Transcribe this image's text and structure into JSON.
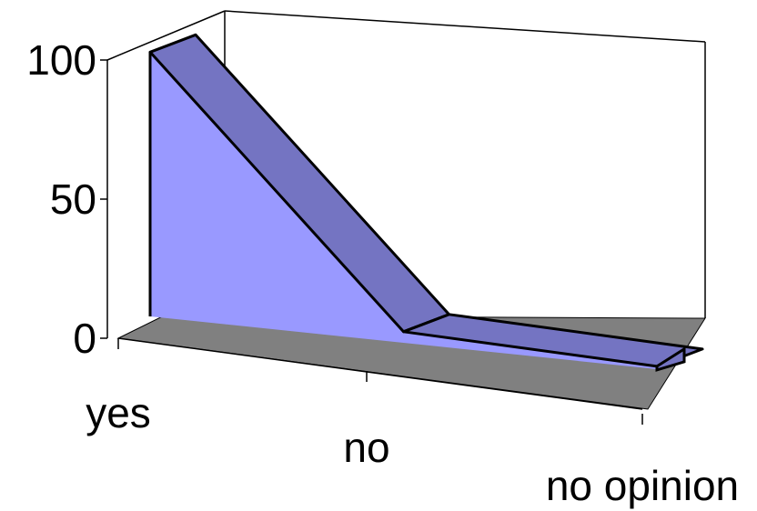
{
  "chart_data": {
    "type": "area",
    "variant": "3d",
    "title": "",
    "xlabel": "",
    "ylabel": "",
    "categories": [
      "yes",
      "no",
      "no opinion"
    ],
    "series": [
      {
        "values": [
          95,
          4,
          1
        ]
      }
    ],
    "ylim": [
      0,
      100
    ],
    "yticks": [
      0,
      50,
      100
    ],
    "grid": false,
    "legend": "none",
    "colors": {
      "area_front": "#9999ff",
      "area_top": "#7474c2",
      "floor": "#808080",
      "outline": "#000000"
    }
  }
}
